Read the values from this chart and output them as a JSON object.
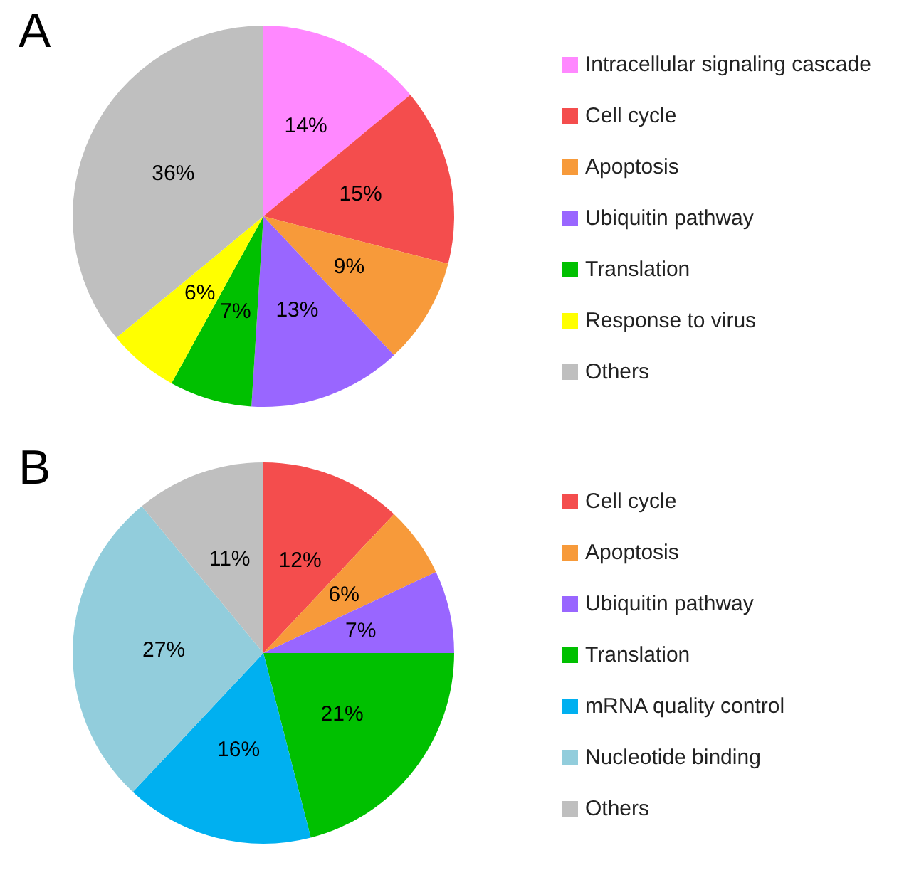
{
  "chart_data": [
    {
      "type": "pie",
      "title": "A",
      "legend": "right",
      "categories": [
        "Intracellular signaling cascade",
        "Cell cycle",
        "Apoptosis",
        "Ubiquitin pathway",
        "Translation",
        "Response to virus",
        "Others"
      ],
      "values": [
        14,
        15,
        9,
        13,
        7,
        6,
        36
      ],
      "value_labels": [
        "14%",
        "15%",
        "9%",
        "13%",
        "7%",
        "6%",
        "36%"
      ],
      "colors": [
        "#ff88ff",
        "#f44d4d",
        "#f79a3a",
        "#9966ff",
        "#00c000",
        "#ffff00",
        "#bfbfbf"
      ]
    },
    {
      "type": "pie",
      "title": "B",
      "legend": "right",
      "categories": [
        "Cell cycle",
        "Apoptosis",
        "Ubiquitin pathway",
        "Translation",
        "mRNA quality control",
        "Nucleotide binding",
        "Others"
      ],
      "values": [
        12,
        6,
        7,
        21,
        16,
        27,
        11
      ],
      "value_labels": [
        "12%",
        "6%",
        "7%",
        "21%",
        "16%",
        "27%",
        "11%"
      ],
      "colors": [
        "#f44d4d",
        "#f79a3a",
        "#9966ff",
        "#00c000",
        "#00b0f0",
        "#92cddc",
        "#bfbfbf"
      ]
    }
  ]
}
